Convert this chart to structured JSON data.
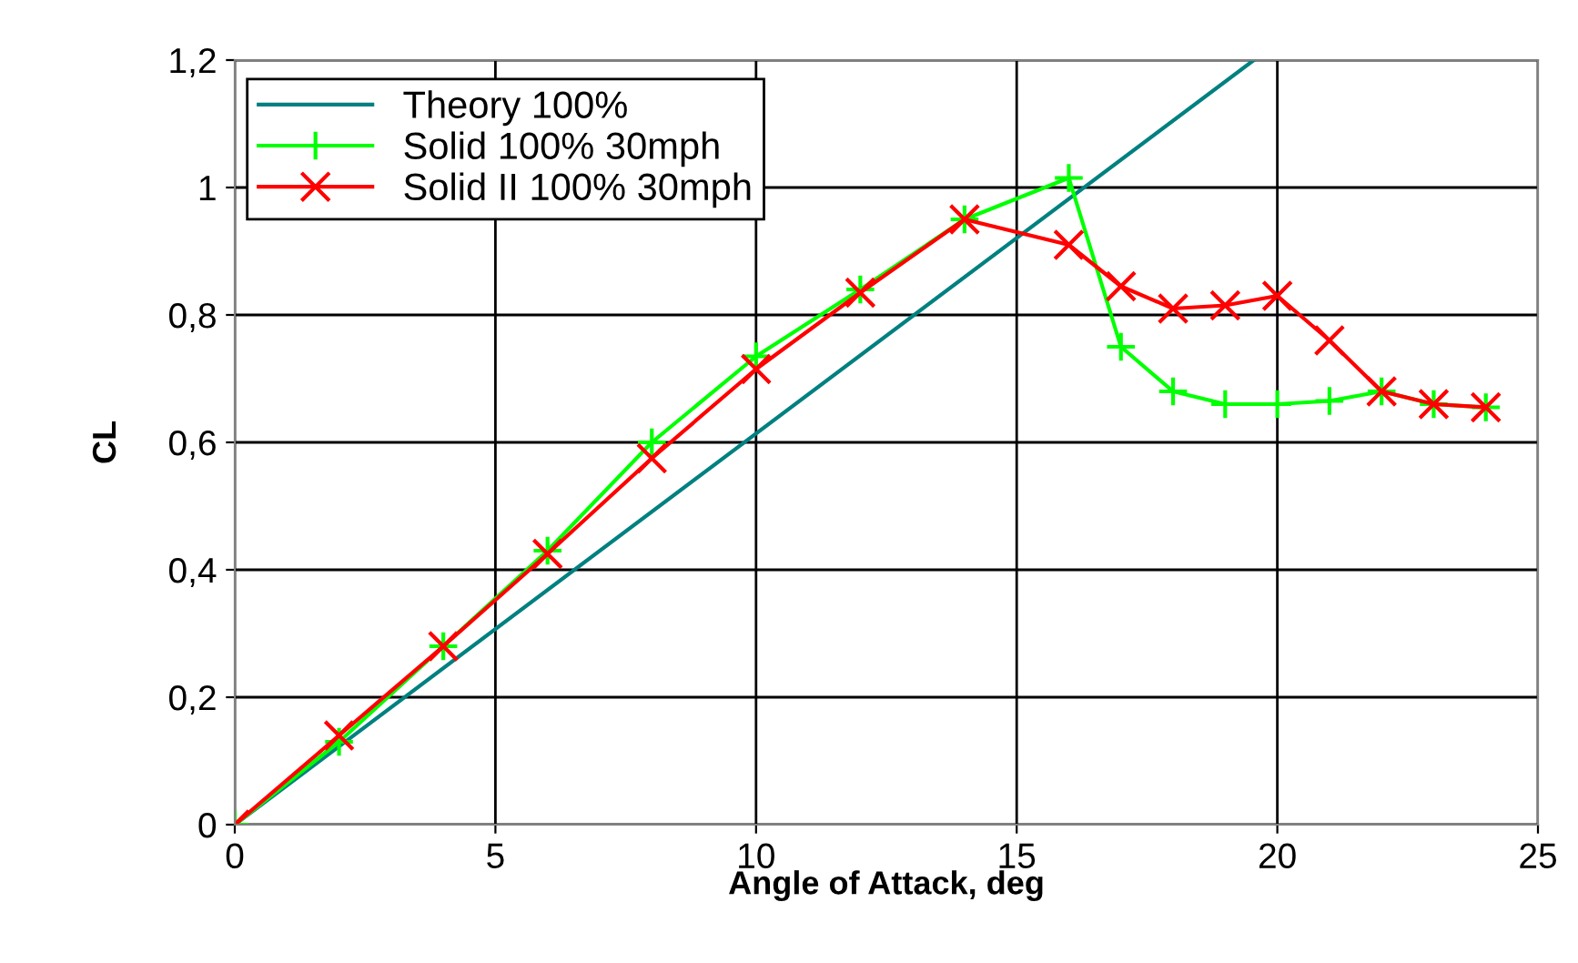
{
  "chart_data": {
    "type": "line",
    "xlabel": "Angle of Attack, deg",
    "ylabel": "CL",
    "xlim": [
      0,
      25
    ],
    "xticks": [
      0,
      5,
      10,
      15,
      20,
      25
    ],
    "ylim": [
      0,
      1.2
    ],
    "yticks": [
      0,
      {
        "value": 0.2,
        "label": "0,2"
      },
      {
        "value": 0.4,
        "label": "0,4"
      },
      {
        "value": 0.6,
        "label": "0,6"
      },
      {
        "value": 0.8,
        "label": "0,8"
      },
      1,
      {
        "value": 1.2,
        "label": "1,2"
      }
    ],
    "grid": true,
    "legend": "top left",
    "series": [
      {
        "name": "Theory 100%",
        "color": "#008080",
        "marker": "none",
        "x": [
          0,
          19.55
        ],
        "values": [
          0,
          1.2
        ]
      },
      {
        "name": "Solid 100% 30mph",
        "color": "#00ff00",
        "marker": "plus",
        "x": [
          0,
          2,
          4,
          6,
          8,
          10,
          12,
          14,
          16,
          17,
          18,
          19,
          20,
          21,
          22,
          23,
          24
        ],
        "values": [
          0,
          0.13,
          0.28,
          0.43,
          0.6,
          0.735,
          0.84,
          0.95,
          1.015,
          0.75,
          0.68,
          0.66,
          0.66,
          0.665,
          0.68,
          0.66,
          0.655
        ]
      },
      {
        "name": "Solid II 100% 30mph",
        "color": "#ff0000",
        "marker": "cross",
        "x": [
          0,
          2,
          4,
          6,
          8,
          10,
          12,
          14,
          16,
          17,
          18,
          19,
          20,
          21,
          22,
          23,
          24
        ],
        "values": [
          0,
          0.14,
          0.28,
          0.425,
          0.575,
          0.715,
          0.835,
          0.95,
          0.91,
          0.845,
          0.81,
          0.815,
          0.83,
          0.76,
          0.68,
          0.66,
          0.655
        ]
      }
    ]
  }
}
